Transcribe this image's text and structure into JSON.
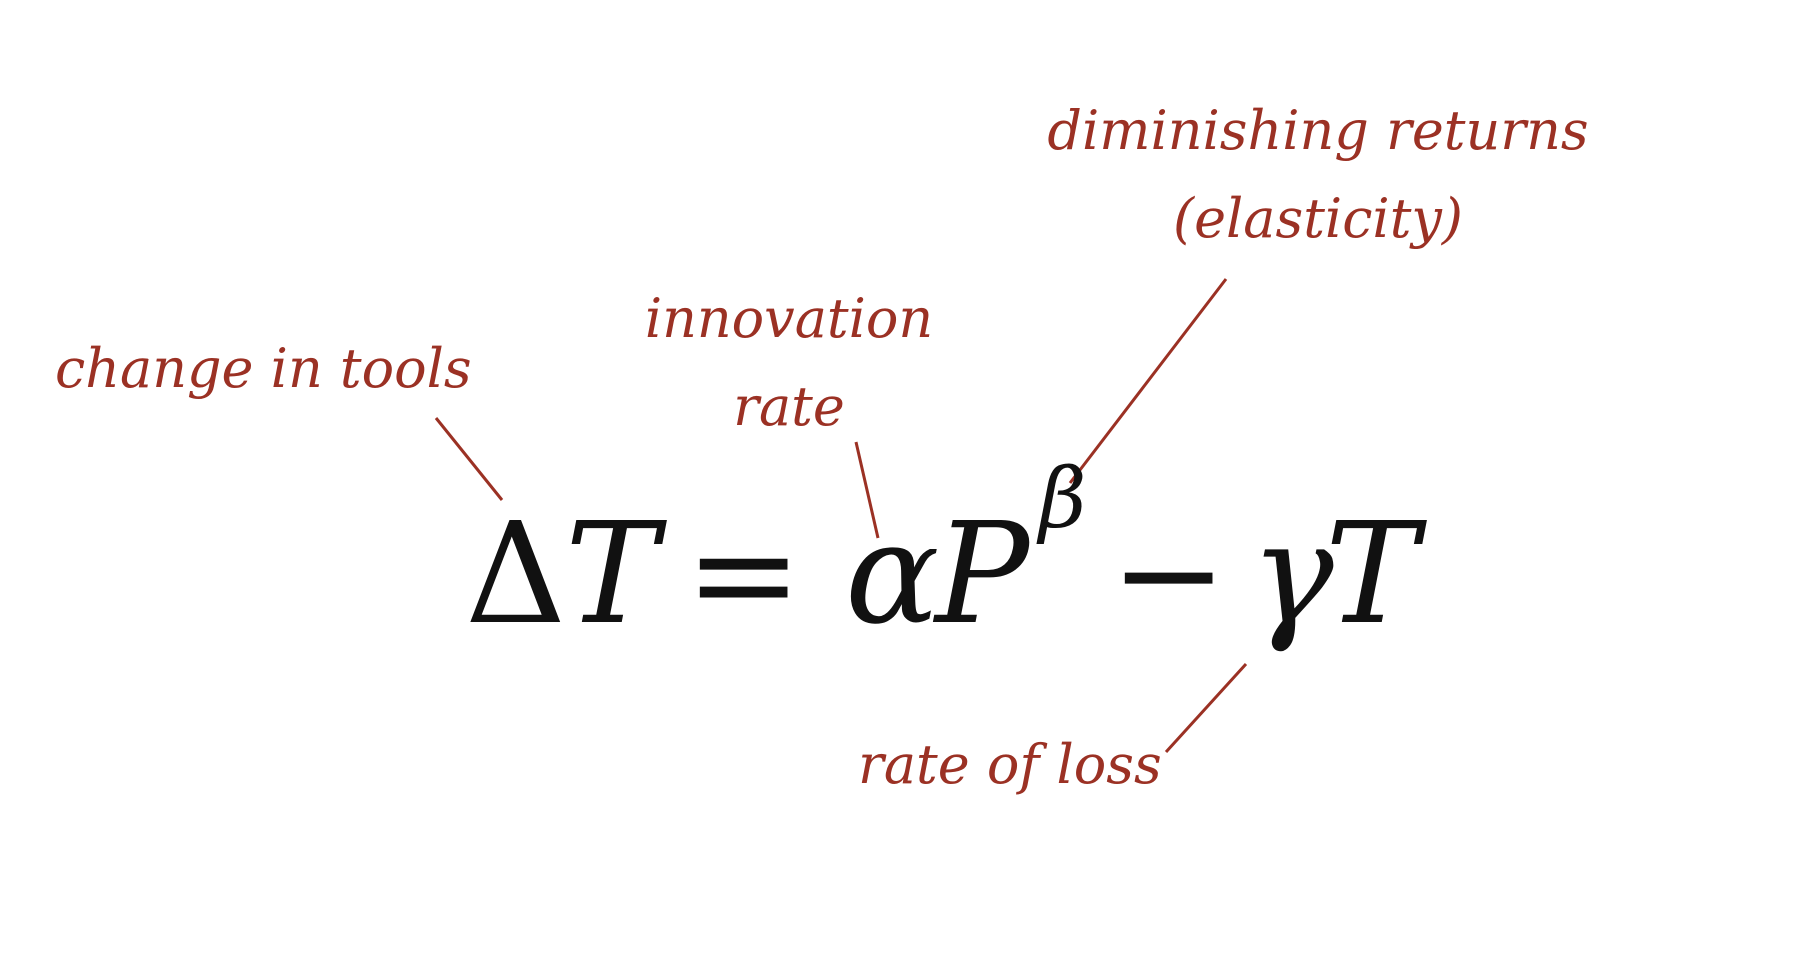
{
  "annotations": {
    "change_in_tools": "change in tools",
    "innovation_line1": "innovation",
    "innovation_line2": "rate",
    "diminishing_line1": "diminishing returns",
    "diminishing_line2": "(elasticity)",
    "rate_of_loss": "rate of loss"
  },
  "equation": {
    "delta": "Δ",
    "T": "T",
    "equals": "=",
    "alpha": "α",
    "P": "P",
    "beta": "β",
    "minus": "−",
    "gamma": "γ",
    "T_end": "T"
  },
  "colors": {
    "annotation": "#9b3124",
    "equation": "#111111",
    "background": "#ffffff"
  }
}
